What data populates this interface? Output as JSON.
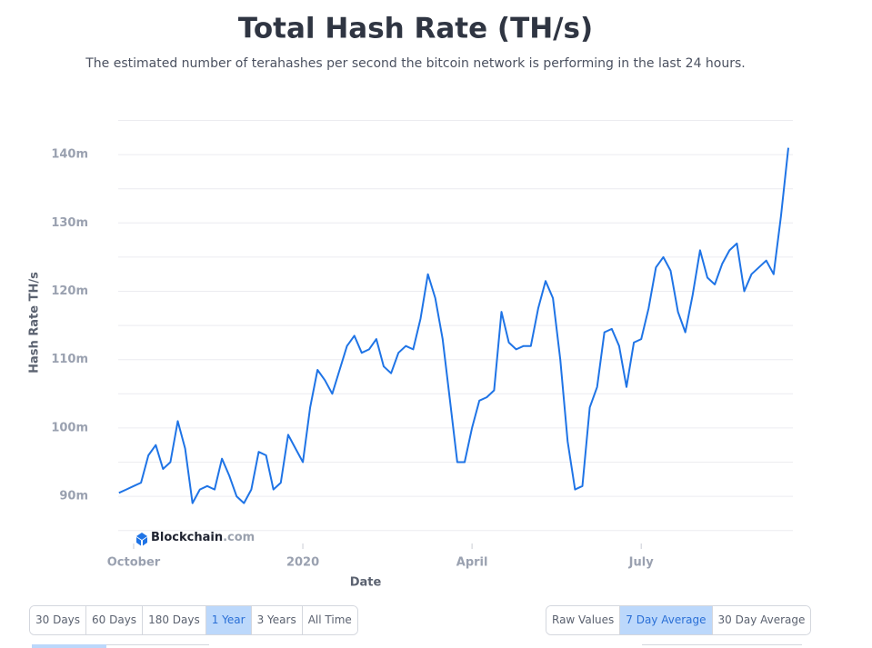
{
  "chart_data": {
    "type": "line",
    "title": "Total Hash Rate (TH/s)",
    "subtitle": "The estimated number of terahashes per second the bitcoin network is performing in the last 24 hours.",
    "x_label": "Date",
    "y_label": "Hash Rate TH/s",
    "watermark": {
      "name": "Blockchain",
      "suffix": ".com"
    },
    "categories": [
      null,
      null,
      "October",
      null,
      null,
      null,
      null,
      null,
      null,
      null,
      null,
      null,
      null,
      null,
      null,
      null,
      null,
      null,
      null,
      null,
      null,
      null,
      null,
      null,
      null,
      "2020",
      null,
      null,
      null,
      null,
      null,
      null,
      null,
      null,
      null,
      null,
      null,
      null,
      null,
      null,
      null,
      null,
      null,
      null,
      null,
      null,
      null,
      null,
      "April",
      null,
      null,
      null,
      null,
      null,
      null,
      null,
      null,
      null,
      null,
      null,
      null,
      null,
      null,
      null,
      null,
      null,
      null,
      null,
      null,
      null,
      null,
      "July",
      null,
      null,
      null,
      null,
      null,
      null,
      null,
      null,
      null,
      null,
      null,
      null,
      null,
      null,
      null,
      null,
      null,
      null,
      null,
      null
    ],
    "series": [
      {
        "color": "#1f74e6",
        "values": [
          90.5,
          91,
          91.5,
          92,
          96,
          97.5,
          94,
          95,
          101,
          97,
          89,
          91,
          91.5,
          91,
          95.5,
          93,
          90,
          89,
          91,
          96.5,
          96,
          91,
          92,
          99,
          97,
          95,
          103,
          108.5,
          107,
          105,
          108.5,
          112,
          113.5,
          111,
          111.5,
          113,
          109,
          108,
          111,
          112,
          111.5,
          116,
          122.5,
          119,
          113,
          104,
          95,
          95,
          100,
          104,
          104.5,
          105.5,
          117,
          112.5,
          111.5,
          112,
          112,
          117.5,
          121.5,
          119,
          110,
          98,
          91,
          91.5,
          103,
          106,
          114,
          114.5,
          112,
          106,
          112.5,
          113,
          117.5,
          123.5,
          125,
          123,
          117,
          114,
          119.5,
          126,
          122,
          121,
          124,
          126,
          127,
          120,
          122.5,
          123.5,
          124.5,
          122.5,
          131,
          141
        ]
      }
    ],
    "ylim": [
      85,
      145.2
    ],
    "yticks": [
      {
        "value": 90,
        "label": "90m"
      },
      {
        "value": 100,
        "label": "100m"
      },
      {
        "value": 110,
        "label": "110m"
      },
      {
        "value": 120,
        "label": "120m"
      },
      {
        "value": 130,
        "label": "130m"
      },
      {
        "value": 140,
        "label": "140m"
      }
    ],
    "ygrid": [
      85,
      90,
      95,
      100,
      105,
      110,
      115,
      120,
      125,
      130,
      135,
      140,
      145
    ],
    "grid": true
  },
  "controls": {
    "range_buttons": [
      "30 Days",
      "60 Days",
      "180 Days",
      "1 Year",
      "3 Years",
      "All Time"
    ],
    "active_range": 3,
    "average_buttons": [
      "Raw Values",
      "7 Day Average",
      "30 Day Average"
    ],
    "active_average": 1
  }
}
